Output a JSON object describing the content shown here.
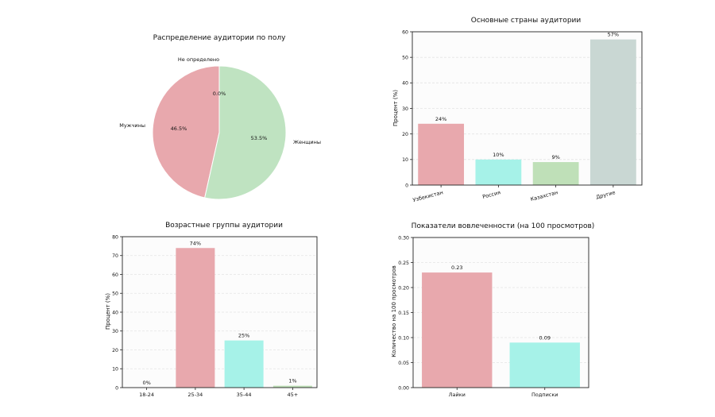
{
  "colors": {
    "pink": "#e8a8ad",
    "green": "#bfe3c1",
    "cyan": "#a6f2e8",
    "lightgreen": "#bfe0b8",
    "gray": "#c9d7d3",
    "axis": "#222222",
    "grid": "#e4e4e4",
    "panel": "#fcfcfc"
  },
  "chart_data": [
    {
      "type": "pie",
      "title": "Распределение аудитории по полу",
      "slices": [
        {
          "label": "Мужчины",
          "value": 46.5,
          "pct_label": "46.5%",
          "color": "#e8a8ad"
        },
        {
          "label": "Женщины",
          "value": 53.5,
          "pct_label": "53.5%",
          "color": "#bfe3c1"
        },
        {
          "label": "Не определено",
          "value": 0.0,
          "pct_label": "0.0%",
          "color": "#c9d7d3"
        }
      ]
    },
    {
      "type": "bar",
      "title": "Основные страны аудитории",
      "ylabel": "Процент (%)",
      "xlabel": "",
      "ylim": [
        0,
        60
      ],
      "yticks": [
        "0",
        "10",
        "20",
        "30",
        "40",
        "50",
        "60"
      ],
      "categories": [
        "Узбекистан",
        "Россия",
        "Казахстан",
        "Другие"
      ],
      "values": [
        24,
        10,
        9,
        57
      ],
      "value_labels": [
        "24%",
        "10%",
        "9%",
        "57%"
      ],
      "colors": [
        "#e8a8ad",
        "#a6f2e8",
        "#bfe0b8",
        "#c9d7d3"
      ],
      "grid": true
    },
    {
      "type": "bar",
      "title": "Возрастные группы аудитории",
      "ylabel": "Процент (%)",
      "xlabel": "",
      "ylim": [
        0,
        80
      ],
      "yticks": [
        "0",
        "10",
        "20",
        "30",
        "40",
        "50",
        "60",
        "70",
        "80"
      ],
      "categories": [
        "18-24",
        "25-34",
        "35-44",
        "45+"
      ],
      "values": [
        0,
        74,
        25,
        1
      ],
      "value_labels": [
        "0%",
        "74%",
        "25%",
        "1%"
      ],
      "colors": [
        "#e8a8ad",
        "#e8a8ad",
        "#a6f2e8",
        "#bfe0b8"
      ],
      "grid": true
    },
    {
      "type": "bar",
      "title": "Показатели вовлеченности (на 100 просмотров)",
      "ylabel": "Количество на 100 просмотров",
      "xlabel": "",
      "ylim": [
        0,
        0.3
      ],
      "yticks": [
        "0.00",
        "0.05",
        "0.10",
        "0.15",
        "0.20",
        "0.25",
        "0.30"
      ],
      "categories": [
        "Лайки",
        "Подписки"
      ],
      "values": [
        0.23,
        0.09
      ],
      "value_labels": [
        "0.23",
        "0.09"
      ],
      "colors": [
        "#e8a8ad",
        "#a6f2e8"
      ],
      "grid": true
    }
  ]
}
